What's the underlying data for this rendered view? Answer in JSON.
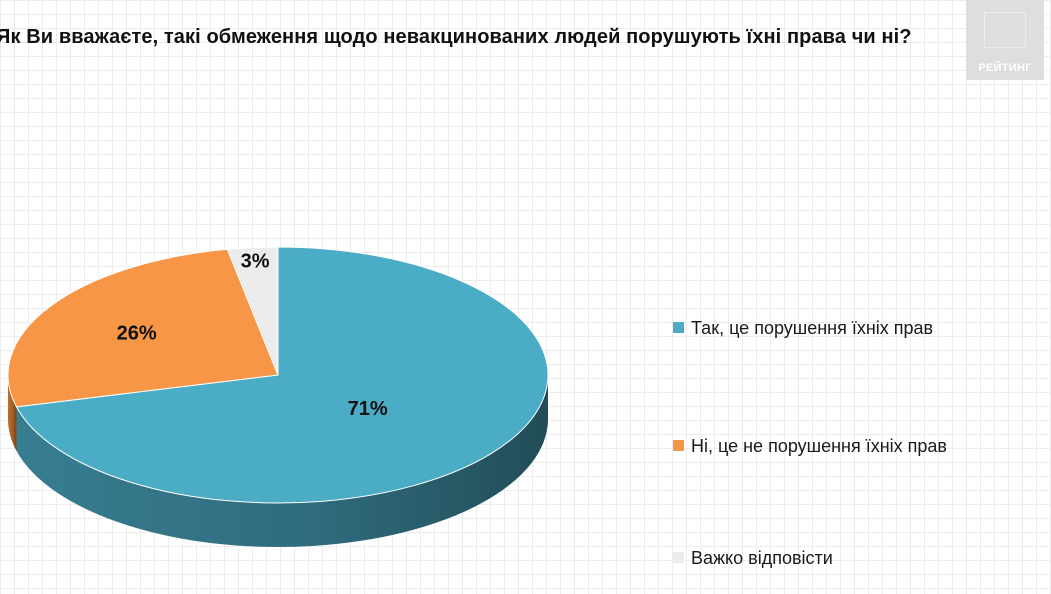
{
  "title": "Як Ви вважаєте, такі обмеження щодо невакцинованих людей порушують їхні права чи ні?",
  "brand": {
    "name": "РЕЙТИНГ"
  },
  "chart_data": {
    "type": "pie",
    "title": "Як Ви вважаєте, такі обмеження щодо невакцинованих людей порушують їхні права чи ні?",
    "style": "3d",
    "legend_position": "right",
    "slices": [
      {
        "label": "Так, це порушення їхніх прав",
        "value": 71,
        "display": "71%",
        "color": "#4bacc6",
        "side_color": "#3a8498"
      },
      {
        "label": "Ні, це не порушення їхніх прав",
        "value": 26,
        "display": "26%",
        "color": "#f79646",
        "side_color": "#c8732f"
      },
      {
        "label": "Важко відповісти",
        "value": 3,
        "display": "3%",
        "color": "#ececec",
        "side_color": "#c9c9c9"
      }
    ]
  }
}
